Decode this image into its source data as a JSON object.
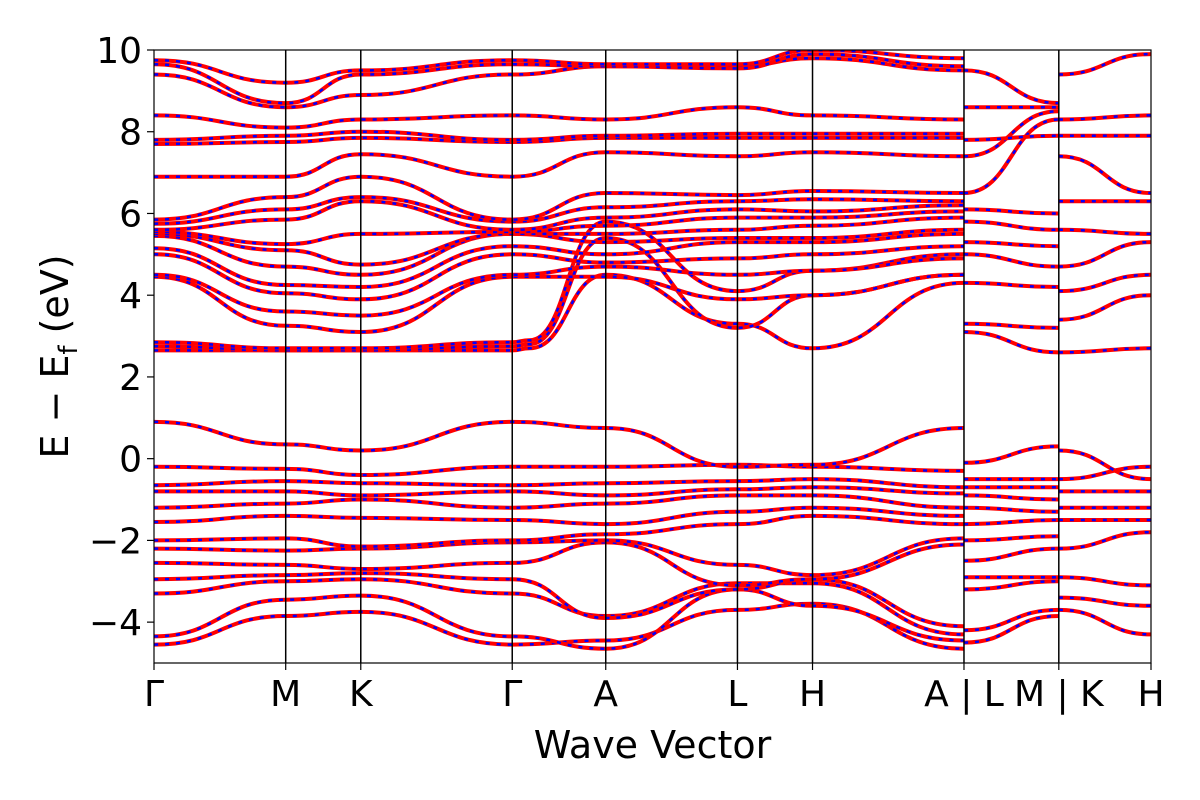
{
  "chart_data": {
    "type": "line",
    "xlabel": "Wave Vector",
    "ylabel": "E − E",
    "ylabel_sub": "f",
    "ylabel_unit": " (eV)",
    "ylim": [
      -5,
      10
    ],
    "yticks": [
      -4,
      -2,
      0,
      2,
      4,
      6,
      8,
      10
    ],
    "ytick_labels": [
      "−4",
      "−2",
      "0",
      "2",
      "4",
      "6",
      "8",
      "10"
    ],
    "kpath": [
      0,
      1,
      1.57,
      2.72,
      3.43,
      4.43,
      5.0,
      6.15,
      6.87,
      7.57
    ],
    "kpath_labels": [
      "Γ",
      "M",
      "K",
      "Γ",
      "A",
      "L",
      "H",
      "A | L",
      "M | K",
      "H"
    ],
    "grid": false,
    "colors": {
      "series_a": "#ff0000",
      "series_b": "#0000ff"
    },
    "series": [
      {
        "x": [
          0,
          1,
          1.57,
          2.72,
          3.43,
          4.43,
          5.0,
          6.15
        ],
        "values": [
          -4.55,
          -3.85,
          -3.75,
          -4.55,
          -4.45,
          -3.7,
          -3.55,
          -4.65
        ]
      },
      {
        "x": [
          0,
          1,
          1.57,
          2.72,
          3.43,
          4.43,
          5.0,
          6.15
        ],
        "values": [
          -4.35,
          -3.45,
          -3.35,
          -4.35,
          -4.65,
          -3.2,
          -3.6,
          -4.45
        ]
      },
      {
        "x": [
          0,
          1,
          1.57,
          2.72,
          3.43,
          4.43,
          5.0,
          6.15
        ],
        "values": [
          -3.3,
          -3.0,
          -2.95,
          -3.3,
          -3.85,
          -3.05,
          -3.05,
          -4.3
        ]
      },
      {
        "x": [
          0,
          1,
          1.57,
          2.72,
          3.43,
          4.43,
          5.0,
          6.15
        ],
        "values": [
          -2.95,
          -2.85,
          -2.8,
          -2.95,
          -3.9,
          -3.2,
          -2.95,
          -4.1
        ]
      },
      {
        "x": [
          0,
          1,
          1.57,
          2.72,
          3.43,
          4.43,
          5.0,
          6.15
        ],
        "values": [
          -2.55,
          -2.6,
          -2.7,
          -2.55,
          -2.05,
          -3.1,
          -2.95,
          -2.1
        ]
      },
      {
        "x": [
          0,
          1,
          1.57,
          2.72,
          3.43,
          4.43,
          5.0,
          6.15
        ],
        "values": [
          -2.2,
          -2.25,
          -2.2,
          -2.05,
          -2.0,
          -2.6,
          -2.85,
          -1.95
        ]
      },
      {
        "x": [
          0,
          1,
          1.57,
          2.72,
          3.43,
          4.43,
          5.0,
          6.15
        ],
        "values": [
          -2.0,
          -1.95,
          -2.15,
          -2.0,
          -1.85,
          -1.6,
          -1.4,
          -1.6
        ]
      },
      {
        "x": [
          0,
          1,
          1.57,
          2.72,
          3.43,
          4.43,
          5.0,
          6.15
        ],
        "values": [
          -1.55,
          -1.4,
          -1.45,
          -1.5,
          -1.6,
          -1.3,
          -1.2,
          -1.4
        ]
      },
      {
        "x": [
          0,
          1,
          1.57,
          2.72,
          3.43,
          4.43,
          5.0,
          6.15
        ],
        "values": [
          -1.2,
          -1.1,
          -1.0,
          -1.2,
          -1.1,
          -0.9,
          -0.9,
          -1.2
        ]
      },
      {
        "x": [
          0,
          1,
          1.57,
          2.72,
          3.43,
          4.43,
          5.0,
          6.15
        ],
        "values": [
          -0.8,
          -0.8,
          -0.9,
          -0.8,
          -0.9,
          -0.75,
          -0.7,
          -0.85
        ]
      },
      {
        "x": [
          0,
          1,
          1.57,
          2.72,
          3.43,
          4.43,
          5.0,
          6.15
        ],
        "values": [
          -0.65,
          -0.55,
          -0.6,
          -0.65,
          -0.6,
          -0.55,
          -0.5,
          -0.7
        ]
      },
      {
        "x": [
          0,
          1,
          1.57,
          2.72,
          3.43,
          4.43,
          5.0,
          6.15
        ],
        "values": [
          -0.2,
          -0.25,
          -0.4,
          -0.2,
          -0.2,
          -0.15,
          -0.2,
          -0.3
        ]
      },
      {
        "x": [
          0,
          1,
          1.57,
          2.72,
          3.43,
          4.43,
          5.0,
          6.15
        ],
        "values": [
          0.9,
          0.35,
          0.2,
          0.9,
          0.75,
          -0.2,
          -0.15,
          0.75
        ]
      },
      {
        "x": [
          0,
          1,
          1.57,
          2.72,
          2.85,
          3.43,
          4.43,
          5.0,
          6.15
        ],
        "values": [
          2.65,
          2.65,
          2.65,
          2.65,
          2.7,
          4.5,
          3.3,
          2.7,
          4.3
        ]
      },
      {
        "x": [
          0,
          1,
          1.57,
          2.72,
          2.85,
          3.43,
          4.43,
          5.0,
          6.15
        ],
        "values": [
          2.75,
          2.65,
          2.65,
          2.75,
          2.8,
          5.4,
          3.2,
          4.0,
          4.5
        ]
      },
      {
        "x": [
          0,
          1,
          1.57,
          2.72,
          2.85,
          3.43,
          4.43,
          5.0,
          6.15
        ],
        "values": [
          2.85,
          2.7,
          2.7,
          2.85,
          2.9,
          5.8,
          4.1,
          4.6,
          5.0
        ]
      },
      {
        "x": [
          0,
          1,
          1.57,
          2.72,
          3.43,
          4.43,
          5.0,
          6.15
        ],
        "values": [
          4.45,
          3.25,
          3.1,
          4.45,
          4.45,
          3.9,
          4.0,
          4.5
        ]
      },
      {
        "x": [
          0,
          1,
          1.57,
          2.72,
          3.43,
          4.43,
          5.0,
          6.15
        ],
        "values": [
          4.5,
          3.6,
          3.5,
          4.5,
          4.7,
          4.5,
          4.6,
          4.9
        ]
      },
      {
        "x": [
          0,
          1,
          1.57,
          2.72,
          3.43,
          4.43,
          5.0,
          6.15
        ],
        "values": [
          5.0,
          4.05,
          3.9,
          5.0,
          4.8,
          4.9,
          5.0,
          5.2
        ]
      },
      {
        "x": [
          0,
          1,
          1.57,
          2.72,
          3.43,
          4.43,
          5.0,
          6.15
        ],
        "values": [
          5.15,
          4.25,
          4.2,
          5.2,
          5.0,
          5.3,
          5.3,
          5.5
        ]
      },
      {
        "x": [
          0,
          1,
          1.57,
          2.72,
          3.43,
          4.43,
          5.0,
          6.15
        ],
        "values": [
          5.45,
          4.7,
          4.5,
          5.5,
          5.3,
          5.4,
          5.4,
          5.6
        ]
      },
      {
        "x": [
          0,
          1,
          1.57,
          2.72,
          3.43,
          4.43,
          5.0,
          6.15
        ],
        "values": [
          5.5,
          5.1,
          4.75,
          5.5,
          5.5,
          5.6,
          5.7,
          5.9
        ]
      },
      {
        "x": [
          0,
          1,
          1.57,
          2.72,
          3.43,
          4.43,
          5.0,
          6.15
        ],
        "values": [
          5.55,
          5.25,
          5.5,
          5.55,
          5.7,
          5.9,
          5.9,
          6.05
        ]
      },
      {
        "x": [
          0,
          1,
          1.57,
          2.72,
          3.43,
          4.43,
          5.0,
          6.15
        ],
        "values": [
          5.6,
          5.85,
          6.3,
          5.6,
          5.9,
          6.1,
          6.05,
          6.2
        ]
      },
      {
        "x": [
          0,
          1,
          1.57,
          2.72,
          3.43,
          4.43,
          5.0,
          6.15
        ],
        "values": [
          5.75,
          6.1,
          6.4,
          5.8,
          6.15,
          6.3,
          6.35,
          6.3
        ]
      },
      {
        "x": [
          0,
          1,
          1.57,
          2.72,
          3.43,
          4.43,
          5.0,
          6.15
        ],
        "values": [
          5.85,
          6.4,
          6.9,
          5.85,
          6.5,
          6.45,
          6.55,
          6.5
        ]
      },
      {
        "x": [
          0,
          1,
          1.57,
          2.72,
          3.43,
          4.43,
          5.0,
          6.15
        ],
        "values": [
          6.9,
          6.9,
          7.45,
          6.9,
          7.5,
          7.4,
          7.5,
          7.4
        ]
      },
      {
        "x": [
          0,
          1,
          1.57,
          2.72,
          3.43,
          4.43,
          5.0,
          6.15
        ],
        "values": [
          7.7,
          7.75,
          7.85,
          7.75,
          7.85,
          7.85,
          7.85,
          7.85
        ]
      },
      {
        "x": [
          0,
          1,
          1.57,
          2.72,
          3.43,
          4.43,
          5.0,
          6.15
        ],
        "values": [
          7.8,
          7.9,
          8.0,
          7.8,
          7.9,
          7.95,
          7.95,
          7.95
        ]
      },
      {
        "x": [
          0,
          1,
          1.57,
          2.72,
          3.43,
          4.43,
          5.0,
          6.15
        ],
        "values": [
          8.4,
          8.1,
          8.3,
          8.4,
          8.3,
          8.6,
          8.4,
          8.3
        ]
      },
      {
        "x": [
          0,
          1,
          1.57,
          2.72,
          3.43,
          4.43,
          5.0,
          6.15
        ],
        "values": [
          9.4,
          8.6,
          8.9,
          9.4,
          9.6,
          9.6,
          9.8,
          9.5
        ]
      },
      {
        "x": [
          0,
          1,
          1.57,
          2.72,
          3.43,
          4.43,
          5.0,
          6.15
        ],
        "values": [
          9.65,
          8.7,
          9.4,
          9.65,
          9.6,
          9.55,
          9.9,
          9.6
        ]
      },
      {
        "x": [
          0,
          1,
          1.57,
          2.72,
          3.43,
          4.43,
          5.0,
          6.15
        ],
        "values": [
          9.75,
          9.2,
          9.5,
          9.75,
          9.65,
          9.65,
          10.0,
          9.8
        ]
      },
      {
        "x": [
          6.15,
          6.87
        ],
        "values": [
          -4.5,
          -3.85
        ]
      },
      {
        "x": [
          6.15,
          6.87
        ],
        "values": [
          -4.2,
          -3.7
        ]
      },
      {
        "x": [
          6.15,
          6.87
        ],
        "values": [
          -3.2,
          -3.0
        ]
      },
      {
        "x": [
          6.15,
          6.87
        ],
        "values": [
          -2.9,
          -2.9
        ]
      },
      {
        "x": [
          6.15,
          6.87
        ],
        "values": [
          -2.5,
          -2.2
        ]
      },
      {
        "x": [
          6.15,
          6.87
        ],
        "values": [
          -2.0,
          -1.9
        ]
      },
      {
        "x": [
          6.15,
          6.87
        ],
        "values": [
          -1.6,
          -1.5
        ]
      },
      {
        "x": [
          6.15,
          6.87
        ],
        "values": [
          -1.2,
          -1.3
        ]
      },
      {
        "x": [
          6.15,
          6.87
        ],
        "values": [
          -0.9,
          -1.0
        ]
      },
      {
        "x": [
          6.15,
          6.87
        ],
        "values": [
          -0.7,
          -0.7
        ]
      },
      {
        "x": [
          6.15,
          6.87
        ],
        "values": [
          -0.5,
          -0.5
        ]
      },
      {
        "x": [
          6.15,
          6.87
        ],
        "values": [
          -0.1,
          0.3
        ]
      },
      {
        "x": [
          6.15,
          6.87
        ],
        "values": [
          3.1,
          2.6
        ]
      },
      {
        "x": [
          6.15,
          6.87
        ],
        "values": [
          3.3,
          3.2
        ]
      },
      {
        "x": [
          6.15,
          6.87
        ],
        "values": [
          4.3,
          4.2
        ]
      },
      {
        "x": [
          6.15,
          6.87
        ],
        "values": [
          5.0,
          4.7
        ]
      },
      {
        "x": [
          6.15,
          6.87
        ],
        "values": [
          5.3,
          5.2
        ]
      },
      {
        "x": [
          6.15,
          6.87
        ],
        "values": [
          5.8,
          5.6
        ]
      },
      {
        "x": [
          6.15,
          6.87
        ],
        "values": [
          6.1,
          6.0
        ]
      },
      {
        "x": [
          6.15,
          6.87
        ],
        "values": [
          6.5,
          8.3
        ]
      },
      {
        "x": [
          6.15,
          6.87
        ],
        "values": [
          7.4,
          8.5
        ]
      },
      {
        "x": [
          6.15,
          6.87
        ],
        "values": [
          7.8,
          7.9
        ]
      },
      {
        "x": [
          6.15,
          6.87
        ],
        "values": [
          8.6,
          8.6
        ]
      },
      {
        "x": [
          6.15,
          6.87
        ],
        "values": [
          9.5,
          8.7
        ]
      },
      {
        "x": [
          6.87,
          7.57
        ],
        "values": [
          -3.7,
          -4.3
        ]
      },
      {
        "x": [
          6.87,
          7.57
        ],
        "values": [
          -3.4,
          -3.6
        ]
      },
      {
        "x": [
          6.87,
          7.57
        ],
        "values": [
          -2.9,
          -3.1
        ]
      },
      {
        "x": [
          6.87,
          7.57
        ],
        "values": [
          -2.2,
          -1.8
        ]
      },
      {
        "x": [
          6.87,
          7.57
        ],
        "values": [
          -1.5,
          -1.5
        ]
      },
      {
        "x": [
          6.87,
          7.57
        ],
        "values": [
          -1.2,
          -1.2
        ]
      },
      {
        "x": [
          6.87,
          7.57
        ],
        "values": [
          -0.8,
          -0.8
        ]
      },
      {
        "x": [
          6.87,
          7.57
        ],
        "values": [
          -0.5,
          -0.2
        ]
      },
      {
        "x": [
          6.87,
          7.57
        ],
        "values": [
          0.2,
          -0.5
        ]
      },
      {
        "x": [
          6.87,
          7.57
        ],
        "values": [
          2.6,
          2.7
        ]
      },
      {
        "x": [
          6.87,
          7.57
        ],
        "values": [
          3.4,
          4.0
        ]
      },
      {
        "x": [
          6.87,
          7.57
        ],
        "values": [
          4.1,
          4.5
        ]
      },
      {
        "x": [
          6.87,
          7.57
        ],
        "values": [
          4.7,
          5.3
        ]
      },
      {
        "x": [
          6.87,
          7.57
        ],
        "values": [
          5.6,
          5.5
        ]
      },
      {
        "x": [
          6.87,
          7.57
        ],
        "values": [
          6.3,
          6.3
        ]
      },
      {
        "x": [
          6.87,
          7.57
        ],
        "values": [
          7.4,
          6.5
        ]
      },
      {
        "x": [
          6.87,
          7.57
        ],
        "values": [
          7.9,
          7.9
        ]
      },
      {
        "x": [
          6.87,
          7.57
        ],
        "values": [
          8.3,
          8.4
        ]
      },
      {
        "x": [
          6.87,
          7.57
        ],
        "values": [
          9.4,
          9.9
        ]
      }
    ]
  }
}
